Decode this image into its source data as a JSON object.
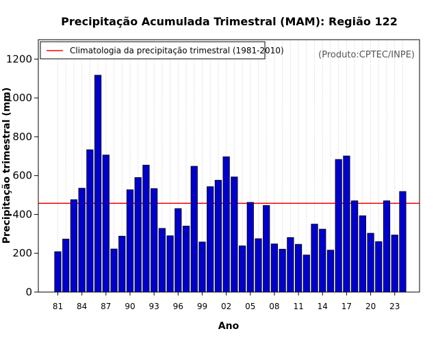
{
  "chart_data": {
    "type": "bar",
    "title": "Precipitação Acumulada Trimestral (MAM): Região 122",
    "xlabel": "Ano",
    "ylabel": "Precipitação trimestral (mm)",
    "source": "(Produto:CPTEC/INPE)",
    "legend": {
      "label": "Climatologia da precipitação trimestral (1981-2010)",
      "placement": "top-left",
      "line_color": "#ff0000"
    },
    "ylim": [
      0,
      1300
    ],
    "yticks": [
      0,
      200,
      400,
      600,
      800,
      1000,
      1200
    ],
    "ytick_labels": [
      "0",
      "200",
      "400",
      "600",
      "800",
      "1000",
      "1200"
    ],
    "xtick_labels": [
      "81",
      "84",
      "87",
      "90",
      "93",
      "96",
      "99",
      "02",
      "05",
      "08",
      "11",
      "14",
      "17",
      "20",
      "23"
    ],
    "xtick_every": 3,
    "categories": [
      "1981",
      "1982",
      "1983",
      "1984",
      "1985",
      "1986",
      "1987",
      "1988",
      "1989",
      "1990",
      "1991",
      "1992",
      "1993",
      "1994",
      "1995",
      "1996",
      "1997",
      "1998",
      "1999",
      "2000",
      "2001",
      "2002",
      "2003",
      "2004",
      "2005",
      "2006",
      "2007",
      "2008",
      "2009",
      "2010",
      "2011",
      "2012",
      "2013",
      "2014",
      "2015",
      "2016",
      "2017",
      "2018",
      "2019",
      "2020",
      "2021",
      "2022",
      "2023",
      "2024"
    ],
    "values": [
      208,
      273,
      476,
      535,
      733,
      1117,
      706,
      222,
      288,
      527,
      590,
      654,
      533,
      328,
      290,
      430,
      340,
      648,
      258,
      543,
      576,
      697,
      593,
      238,
      462,
      275,
      446,
      248,
      221,
      281,
      246,
      191,
      350,
      324,
      216,
      683,
      701,
      470,
      393,
      303,
      260,
      470,
      294,
      518
    ],
    "climatology": 457,
    "bar_color": "#0000cd",
    "grid": "vertical-dotted"
  }
}
